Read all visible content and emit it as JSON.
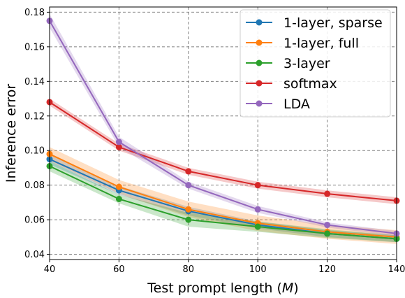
{
  "chart_data": {
    "type": "line",
    "xlabel": "Test prompt length (M)",
    "ylabel": "Inference error",
    "x": [
      40,
      60,
      80,
      100,
      120,
      140
    ],
    "xlim": [
      40,
      140
    ],
    "ylim": [
      0.037,
      0.183
    ],
    "xticks": [
      "40",
      "60",
      "80",
      "100",
      "120",
      "140"
    ],
    "yticks": [
      "0.04",
      "0.06",
      "0.08",
      "0.10",
      "0.12",
      "0.14",
      "0.16",
      "0.18"
    ],
    "grid": true,
    "legend_position": "top-right",
    "series": [
      {
        "name": "1-layer, sparse",
        "color": "#1f77b4",
        "values": [
          0.095,
          0.077,
          0.065,
          0.057,
          0.052,
          0.049
        ],
        "band": [
          0.003,
          0.0025,
          0.0025,
          0.002,
          0.002,
          0.002
        ]
      },
      {
        "name": "1-layer, full",
        "color": "#ff7f0e",
        "values": [
          0.098,
          0.079,
          0.066,
          0.058,
          0.053,
          0.05
        ],
        "band": [
          0.004,
          0.004,
          0.0045,
          0.0045,
          0.004,
          0.004
        ]
      },
      {
        "name": "3-layer",
        "color": "#2ca02c",
        "values": [
          0.091,
          0.072,
          0.06,
          0.056,
          0.052,
          0.049
        ],
        "band": [
          0.003,
          0.0025,
          0.004,
          0.003,
          0.0025,
          0.002
        ]
      },
      {
        "name": "softmax",
        "color": "#d62728",
        "values": [
          0.128,
          0.102,
          0.088,
          0.08,
          0.075,
          0.071
        ],
        "band": [
          0.002,
          0.002,
          0.002,
          0.002,
          0.002,
          0.002
        ]
      },
      {
        "name": "LDA",
        "color": "#9467bd",
        "values": [
          0.175,
          0.105,
          0.08,
          0.066,
          0.057,
          0.052
        ],
        "band": [
          0.004,
          0.003,
          0.002,
          0.002,
          0.0015,
          0.0015
        ]
      }
    ]
  }
}
